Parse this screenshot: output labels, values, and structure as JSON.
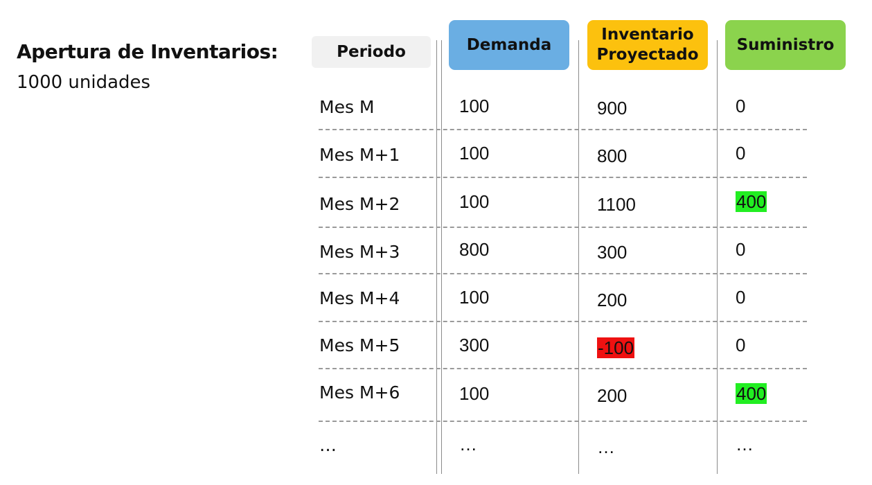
{
  "heading": {
    "title": "Apertura de Inventarios:",
    "subtitle": "1000 unidades"
  },
  "columns": {
    "periodo": "Periodo",
    "demanda": "Demanda",
    "inventario_line1": "Inventario",
    "inventario_line2": "Proyectado",
    "suministro": "Suministro"
  },
  "rows": [
    {
      "periodo": "Mes M",
      "demanda": "100",
      "inventario": "900",
      "suministro": "0"
    },
    {
      "periodo": "Mes M+1",
      "demanda": "100",
      "inventario": "800",
      "suministro": "0"
    },
    {
      "periodo": "Mes M+2",
      "demanda": "100",
      "inventario": "1100",
      "suministro": "400"
    },
    {
      "periodo": "Mes M+3",
      "demanda": "800",
      "inventario": "300",
      "suministro": "0"
    },
    {
      "periodo": "Mes M+4",
      "demanda": "100",
      "inventario": "200",
      "suministro": "0"
    },
    {
      "periodo": "Mes M+5",
      "demanda": "300",
      "inventario": "-100",
      "suministro": "0"
    },
    {
      "periodo": "Mes M+6",
      "demanda": "100",
      "inventario": "200",
      "suministro": "400"
    },
    {
      "periodo": "…",
      "demanda": "…",
      "inventario": "…",
      "suministro": "…"
    }
  ],
  "colors": {
    "demanda_header": "#6aaee3",
    "inventario_header": "#fcc10e",
    "suministro_header": "#8bd34d",
    "periodo_header": "#f1f1f1",
    "positive_highlight": "#22ee22",
    "negative_highlight": "#ee1111"
  }
}
